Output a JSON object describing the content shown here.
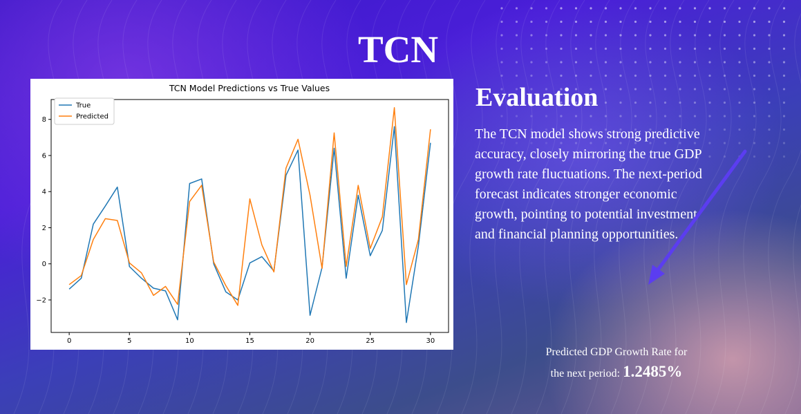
{
  "slide": {
    "title": "TCN",
    "heading": "Evaluation",
    "body": "The TCN model shows strong predictive accuracy, closely mirroring the true GDP growth rate fluctuations. The next-period forecast indicates stronger economic growth, pointing to potential investment and financial planning opportunities.",
    "prediction_label_1": "Predicted GDP Growth Rate for",
    "prediction_label_2": "the next period:",
    "prediction_value": "1.2485%"
  },
  "colors": {
    "true_series": "#1f77b4",
    "predicted_series": "#ff7f0e",
    "arrow": "#5b3df0"
  },
  "chart_data": {
    "type": "line",
    "title": "TCN Model Predictions vs True Values",
    "xlabel": "",
    "ylabel": "",
    "x": [
      0,
      1,
      2,
      3,
      4,
      5,
      6,
      7,
      8,
      9,
      10,
      11,
      12,
      13,
      14,
      15,
      16,
      17,
      18,
      19,
      20,
      21,
      22,
      23,
      24,
      25,
      26,
      27,
      28,
      29,
      30
    ],
    "xlim": [
      -1.5,
      31.5
    ],
    "ylim": [
      -3.8,
      9.1
    ],
    "xticks": [
      0,
      5,
      10,
      15,
      20,
      25,
      30
    ],
    "yticks": [
      -2,
      0,
      2,
      4,
      6,
      8
    ],
    "legend": "top-left",
    "grid": false,
    "series": [
      {
        "name": "True",
        "values": [
          -1.4,
          -0.8,
          2.2,
          3.2,
          4.25,
          -0.15,
          -0.8,
          -1.35,
          -1.5,
          -3.1,
          4.45,
          4.7,
          0.0,
          -1.55,
          -2.0,
          0.05,
          0.4,
          -0.4,
          4.9,
          6.3,
          -2.85,
          -0.2,
          6.4,
          -0.8,
          3.8,
          0.45,
          1.85,
          7.6,
          -3.25,
          1.0,
          6.7
        ]
      },
      {
        "name": "Predicted",
        "values": [
          -1.15,
          -0.65,
          1.35,
          2.5,
          2.4,
          0.05,
          -0.5,
          -1.75,
          -1.25,
          -2.25,
          3.45,
          4.35,
          0.1,
          -1.2,
          -2.3,
          3.6,
          1.05,
          -0.45,
          5.3,
          6.9,
          3.8,
          -0.25,
          7.25,
          -0.15,
          4.35,
          0.85,
          2.6,
          8.65,
          -1.15,
          1.35,
          7.45
        ]
      }
    ]
  }
}
